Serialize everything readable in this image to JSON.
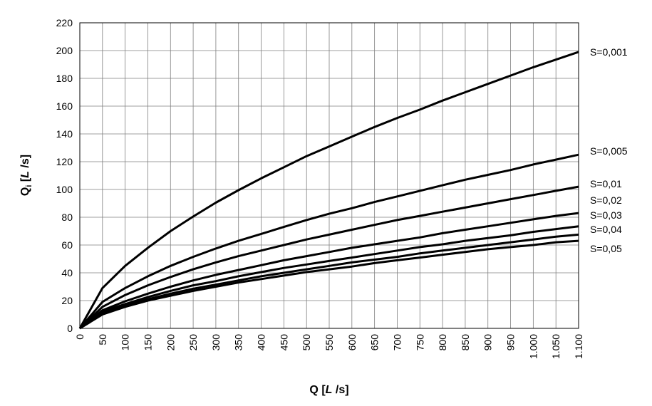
{
  "chart_data": {
    "type": "line",
    "x": [
      0,
      50,
      100,
      150,
      200,
      250,
      300,
      350,
      400,
      450,
      500,
      550,
      600,
      650,
      700,
      750,
      800,
      850,
      900,
      950,
      1000,
      1050,
      1100
    ],
    "x_tick_labels": [
      "0",
      "50",
      "100",
      "150",
      "200",
      "250",
      "300",
      "350",
      "400",
      "450",
      "500",
      "550",
      "600",
      "650",
      "700",
      "750",
      "800",
      "850",
      "900",
      "950",
      "1.000",
      "1.050",
      "1.100"
    ],
    "y_ticks": [
      0,
      20,
      40,
      60,
      80,
      100,
      120,
      140,
      160,
      180,
      200,
      220
    ],
    "xlim": [
      0,
      1100
    ],
    "ylim": [
      0,
      220
    ],
    "grid": true,
    "xlabel": {
      "main": "Q",
      "unit_italic": "L",
      "unit_rest": " /s"
    },
    "ylabel": {
      "main": "Q",
      "sub": "i",
      "unit_italic": "L",
      "unit_rest": " /s"
    },
    "series": [
      {
        "name": "S=0,001",
        "values": [
          0,
          29,
          45,
          58,
          70,
          80.5,
          90.5,
          99.5,
          108,
          116,
          124,
          131,
          138,
          145,
          151.5,
          157.5,
          164,
          170,
          176,
          182,
          188,
          193.5,
          199
        ]
      },
      {
        "name": "S=0,005",
        "values": [
          0,
          19,
          29,
          37.5,
          45,
          51.5,
          57.5,
          63,
          68,
          73,
          78,
          82.5,
          86.5,
          91,
          95,
          99,
          103,
          107,
          110.5,
          114,
          118,
          121.5,
          125
        ]
      },
      {
        "name": "S=0,01",
        "values": [
          0,
          15.5,
          24,
          31,
          37,
          42.5,
          47.5,
          52,
          56,
          60,
          64,
          67.5,
          71,
          74.5,
          78,
          81,
          84,
          87,
          90,
          93,
          96,
          99,
          102
        ]
      },
      {
        "name": "S=0,02",
        "values": [
          0,
          13,
          19.5,
          25,
          30,
          34.5,
          38.5,
          42,
          45.5,
          49,
          52,
          55,
          58,
          60.5,
          63,
          65.5,
          68.5,
          71,
          73.5,
          76,
          78.5,
          81,
          83
        ]
      },
      {
        "name": "S=0,03",
        "values": [
          0,
          12,
          17.5,
          22.5,
          27,
          31,
          34,
          37.5,
          40.5,
          43.5,
          46,
          48.5,
          51,
          53.5,
          56,
          58.5,
          60.5,
          63,
          65,
          67,
          69.5,
          71.5,
          73.5
        ]
      },
      {
        "name": "S=0,04",
        "values": [
          0,
          11,
          16.5,
          21,
          25,
          28.5,
          31.5,
          34.5,
          37.5,
          40,
          42.5,
          45,
          47.5,
          49.5,
          51.5,
          54,
          56,
          58,
          60,
          62,
          64,
          66,
          67.5
        ]
      },
      {
        "name": "S=0,05",
        "values": [
          0,
          10,
          15.5,
          20,
          23.5,
          27,
          30,
          33,
          35.5,
          38,
          40.5,
          42.5,
          44.5,
          47,
          49,
          51,
          53,
          55,
          57,
          58.5,
          60,
          62,
          63
        ]
      }
    ]
  }
}
